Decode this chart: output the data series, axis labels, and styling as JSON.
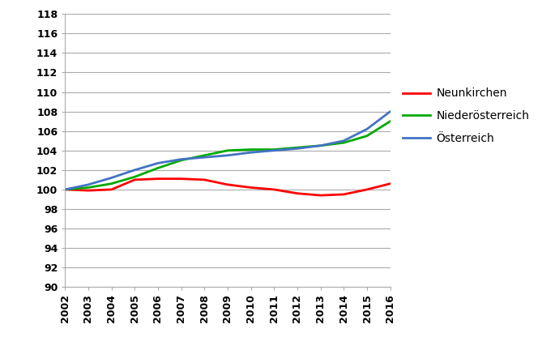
{
  "years": [
    2002,
    2003,
    2004,
    2005,
    2006,
    2007,
    2008,
    2009,
    2010,
    2011,
    2012,
    2013,
    2014,
    2015,
    2016
  ],
  "neunkirchen": [
    100.0,
    99.9,
    100.0,
    101.0,
    101.1,
    101.1,
    101.0,
    100.5,
    100.2,
    100.0,
    99.6,
    99.4,
    99.5,
    100.0,
    100.6
  ],
  "niederoesterreich": [
    100.0,
    100.2,
    100.6,
    101.3,
    102.2,
    103.0,
    103.5,
    104.0,
    104.1,
    104.1,
    104.3,
    104.5,
    104.8,
    105.5,
    107.0
  ],
  "oesterreich": [
    100.0,
    100.5,
    101.2,
    102.0,
    102.7,
    103.1,
    103.3,
    103.5,
    103.8,
    104.0,
    104.2,
    104.5,
    105.0,
    106.2,
    108.0
  ],
  "colors": {
    "neunkirchen": "#FF0000",
    "niederoesterreich": "#00AA00",
    "oesterreich": "#4472C4"
  },
  "legend_labels": [
    "Neunkirchen",
    "Niederösterreich",
    "Österreich"
  ],
  "ylim": [
    90,
    118
  ],
  "yticks": [
    90,
    92,
    94,
    96,
    98,
    100,
    102,
    104,
    106,
    108,
    110,
    112,
    114,
    116,
    118
  ],
  "xlim_min": 2002,
  "xlim_max": 2016,
  "line_width": 2.0,
  "grid_color": "#AAAAAA",
  "background_color": "#FFFFFF",
  "tick_fontsize": 9,
  "tick_fontweight": "bold",
  "legend_fontsize": 10
}
